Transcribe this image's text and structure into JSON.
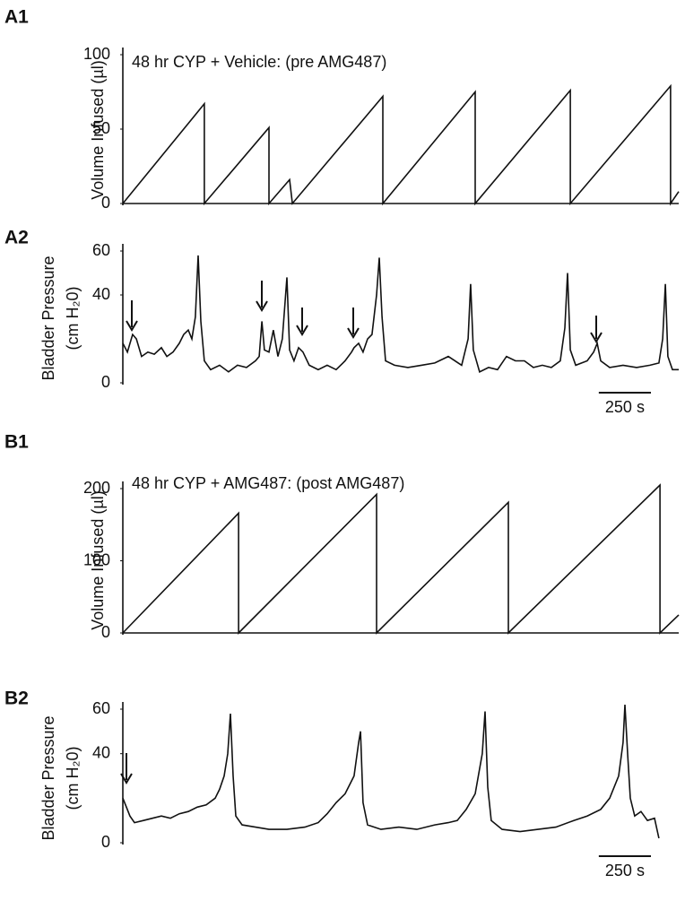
{
  "chart_data": [
    {
      "type": "line",
      "panel": "A1",
      "annotation": "48 hr CYP + Vehicle: (pre AMG487)",
      "y_label": [
        "Volume Infused (µl)"
      ],
      "x": [
        0,
        391,
        391,
        701,
        701,
        800,
        813,
        1247,
        1247,
        1690,
        1690,
        2146,
        2146,
        2627,
        2627,
        2666
      ],
      "values": [
        0,
        67,
        0,
        51,
        0,
        16,
        0,
        72,
        0,
        75,
        0,
        76,
        0,
        79,
        0,
        8
      ],
      "color": "#111111",
      "xlim": [
        0,
        2666
      ],
      "ylim": [
        0,
        100
      ],
      "yticks": [
        0,
        50,
        100
      ],
      "x_axis": true
    },
    {
      "type": "line",
      "panel": "A2",
      "y_label": [
        "Bladder Pressure",
        "(cm H₂0)"
      ],
      "x": [
        0,
        22,
        47,
        65,
        90,
        120,
        151,
        185,
        211,
        241,
        271,
        292,
        314,
        331,
        348,
        361,
        374,
        391,
        421,
        464,
        507,
        550,
        593,
        636,
        654,
        667,
        679,
        701,
        722,
        744,
        765,
        787,
        800,
        821,
        843,
        864,
        894,
        937,
        980,
        1023,
        1066,
        1097,
        1109,
        1131,
        1152,
        1174,
        1195,
        1217,
        1230,
        1243,
        1260,
        1303,
        1367,
        1432,
        1496,
        1561,
        1625,
        1656,
        1668,
        1681,
        1711,
        1754,
        1797,
        1840,
        1883,
        1926,
        1969,
        2012,
        2055,
        2098,
        2120,
        2133,
        2146,
        2172,
        2227,
        2258,
        2275,
        2292,
        2335,
        2399,
        2464,
        2528,
        2571,
        2589,
        2602,
        2614,
        2636,
        2666
      ],
      "values": [
        18,
        14,
        22,
        20,
        12,
        14,
        13,
        16,
        12,
        14,
        18,
        22,
        24,
        20,
        30,
        58,
        28,
        10,
        6,
        8,
        5,
        8,
        7,
        10,
        12,
        28,
        15,
        14,
        24,
        12,
        20,
        48,
        15,
        10,
        16,
        14,
        8,
        6,
        8,
        6,
        10,
        14,
        16,
        18,
        14,
        20,
        22,
        40,
        57,
        30,
        10,
        8,
        7,
        8,
        9,
        12,
        8,
        20,
        45,
        15,
        5,
        7,
        6,
        12,
        10,
        10,
        7,
        8,
        7,
        10,
        25,
        50,
        15,
        8,
        10,
        14,
        18,
        10,
        7,
        8,
        7,
        8,
        9,
        20,
        45,
        12,
        6,
        6
      ],
      "color": "#111111",
      "xlim": [
        0,
        2666
      ],
      "ylim": [
        0,
        60
      ],
      "yticks": [
        0,
        40,
        60
      ],
      "x_axis": false,
      "scale_bar": {
        "value": 250,
        "label": "250 s"
      }
    },
    {
      "type": "line",
      "panel": "B1",
      "annotation": "48 hr CYP + AMG487: (post AMG487)",
      "y_label": [
        "Volume Infused (µl)"
      ],
      "x": [
        0,
        555,
        555,
        1217,
        1217,
        1849,
        1849,
        2576,
        2576,
        2666
      ],
      "values": [
        0,
        166,
        0,
        192,
        0,
        181,
        0,
        205,
        0,
        25
      ],
      "color": "#111111",
      "xlim": [
        0,
        2666
      ],
      "ylim": [
        0,
        200
      ],
      "yticks": [
        0,
        100,
        200
      ],
      "x_axis": true
    },
    {
      "type": "line",
      "panel": "B2",
      "y_label": [
        "Bladder Pressure",
        "(cm H₂0)"
      ],
      "x": [
        0,
        17,
        34,
        56,
        99,
        142,
        185,
        228,
        271,
        314,
        357,
        400,
        443,
        464,
        486,
        503,
        516,
        529,
        542,
        572,
        636,
        701,
        787,
        873,
        937,
        980,
        1023,
        1066,
        1109,
        1131,
        1140,
        1152,
        1174,
        1238,
        1324,
        1410,
        1496,
        1561,
        1604,
        1647,
        1690,
        1724,
        1737,
        1750,
        1767,
        1819,
        1905,
        1991,
        2077,
        2163,
        2227,
        2292,
        2335,
        2378,
        2399,
        2408,
        2421,
        2434,
        2455,
        2485,
        2516,
        2550,
        2571
      ],
      "values": [
        20,
        16,
        12,
        9,
        10,
        11,
        12,
        11,
        13,
        14,
        16,
        17,
        20,
        24,
        30,
        40,
        58,
        30,
        12,
        8,
        7,
        6,
        6,
        7,
        9,
        13,
        18,
        22,
        30,
        45,
        50,
        18,
        8,
        6,
        7,
        6,
        8,
        9,
        10,
        15,
        22,
        40,
        59,
        25,
        10,
        6,
        5,
        6,
        7,
        10,
        12,
        15,
        20,
        30,
        45,
        62,
        40,
        20,
        12,
        14,
        10,
        11,
        2
      ],
      "color": "#111111",
      "xlim": [
        0,
        2666
      ],
      "ylim": [
        0,
        60
      ],
      "yticks": [
        0,
        40,
        60
      ],
      "x_axis": false,
      "scale_bar": {
        "value": 250,
        "label": "250 s"
      }
    }
  ]
}
